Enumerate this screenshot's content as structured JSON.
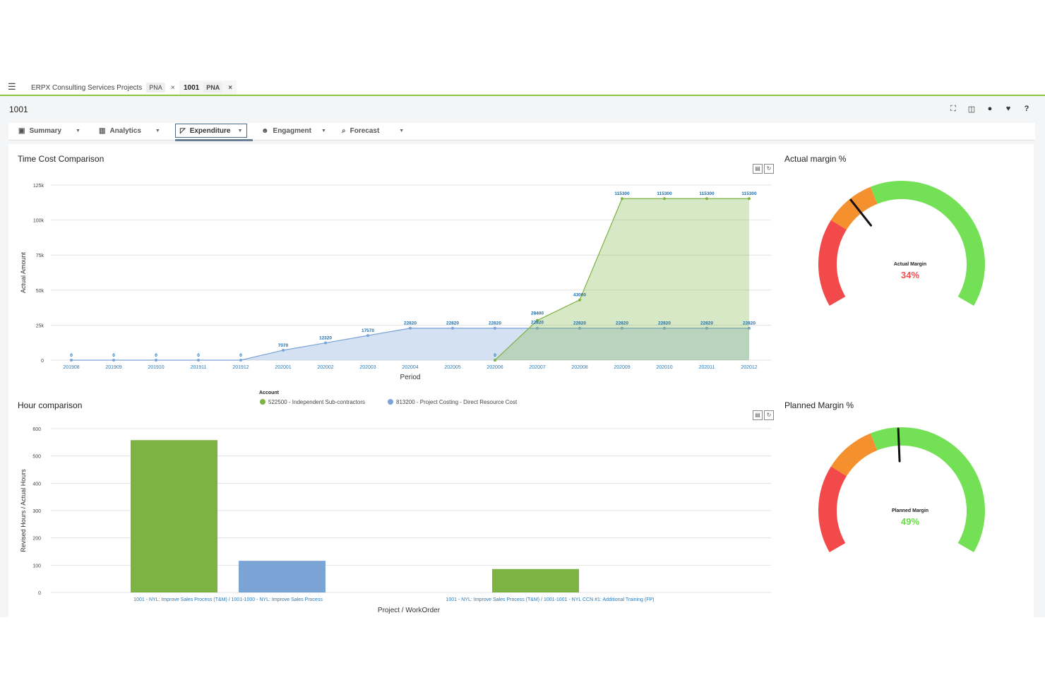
{
  "tabs": [
    {
      "label": "ERPX Consulting Services Projects",
      "badge": "PNA",
      "close": "×"
    },
    {
      "label": "1001",
      "badge": "PNA",
      "close": "×"
    }
  ],
  "page": {
    "title": "1001"
  },
  "toolbar_icons": [
    "fullscreen-icon",
    "layout-icon",
    "lightbulb-icon",
    "heart-icon",
    "help-icon"
  ],
  "nav": [
    {
      "label": "Summary",
      "icon": "summary-icon"
    },
    {
      "label": "Analytics",
      "icon": "bar-chart-icon"
    },
    {
      "label": "Expenditure",
      "icon": "expenditure-icon"
    },
    {
      "label": "Engagment",
      "icon": "people-icon"
    },
    {
      "label": "Forecast",
      "icon": "search-icon"
    }
  ],
  "time_cost": {
    "title": "Time Cost Comparison",
    "chart_data": {
      "type": "area",
      "xlabel": "Period",
      "ylabel": "Actual Amount",
      "ylim": [
        0,
        125000
      ],
      "yticks": [
        0,
        25000,
        50000,
        75000,
        100000,
        125000
      ],
      "ytick_labels": [
        "0",
        "25k",
        "50k",
        "75k",
        "100k",
        "125k"
      ],
      "categories": [
        "201908",
        "201909",
        "201910",
        "201911",
        "201912",
        "202001",
        "202002",
        "202003",
        "202004",
        "202005",
        "202006",
        "202007",
        "202008",
        "202009",
        "202010",
        "202011",
        "202012"
      ],
      "legend_title": "Account",
      "legend_position": "bottom",
      "series": [
        {
          "name": "522500 - Independent Sub-contractors",
          "color": "#7cb342",
          "values": [
            null,
            null,
            null,
            null,
            null,
            null,
            null,
            null,
            null,
            null,
            0,
            28400,
            43000,
            115300,
            115300,
            115300,
            115300
          ],
          "labels": [
            "",
            "",
            "",
            "",
            "",
            "",
            "",
            "",
            "",
            "",
            "0",
            "28400",
            "43000",
            "115300",
            "115300",
            "115300",
            "115300"
          ]
        },
        {
          "name": "813200 - Project Costing - Direct Resource Cost",
          "color": "#7aa3d6",
          "values": [
            0,
            0,
            0,
            0,
            0,
            7070,
            12320,
            17570,
            22820,
            22820,
            22820,
            22820,
            22820,
            22820,
            22820,
            22820,
            22820
          ],
          "labels": [
            "0",
            "0",
            "0",
            "0",
            "0",
            "7070",
            "12320",
            "17570",
            "22820",
            "22820",
            "22820",
            "22820",
            "22820",
            "22820",
            "22820",
            "22820",
            "22820"
          ]
        }
      ]
    }
  },
  "hours": {
    "title": "Hour comparison",
    "chart_data": {
      "type": "bar",
      "xlabel": "Project / WorkOrder",
      "ylabel": "Revised Hours / Actual Hours",
      "ylim": [
        0,
        600
      ],
      "yticks": [
        0,
        100,
        200,
        300,
        400,
        500,
        600
      ],
      "categories": [
        "1001 - NYL: Improve Sales Process (T&M) / 1001-1000 - NYL: Improve Sales Process",
        "1001 - NYL: Improve Sales Process (T&M) / 1001-1001 - NYL CCN #1: Additional Training (FP)"
      ],
      "series": [
        {
          "color": "#7cb342",
          "values": [
            558,
            86
          ]
        },
        {
          "color": "#7ba4d6",
          "values": [
            116,
            null
          ]
        }
      ]
    }
  },
  "actual_margin": {
    "title": "Actual margin %",
    "label": "Actual Margin",
    "value_text": "34%",
    "value": 34,
    "value_color": "#f05050"
  },
  "planned_margin": {
    "title": "Planned Margin %",
    "label": "Planned Margin",
    "value_text": "49%",
    "value": 49,
    "value_color": "#66dd44"
  },
  "gauge_colors": {
    "red": "#f24a4a",
    "orange": "#f5902e",
    "green": "#74e055"
  }
}
